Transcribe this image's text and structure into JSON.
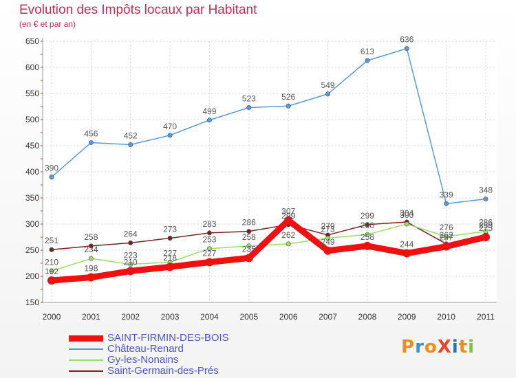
{
  "chart_data": {
    "type": "line",
    "title": "Evolution des Impôts locaux par Habitant",
    "subtitle": "(en € et par an)",
    "x": [
      "2000",
      "2001",
      "2002",
      "2003",
      "2004",
      "2005",
      "2006",
      "2007",
      "2008",
      "2009",
      "2010",
      "2011"
    ],
    "ylim": [
      150,
      650
    ],
    "yticks": [
      150,
      200,
      250,
      300,
      350,
      400,
      450,
      500,
      550,
      600,
      650
    ],
    "grid": true,
    "legend_position": "bottom-left",
    "series": [
      {
        "name": "SAINT-FIRMIN-DES-BOIS",
        "color": "#ee1111",
        "values": [
          192,
          198,
          210,
          218,
          227,
          235,
          307,
          249,
          258,
          244,
          257,
          275
        ]
      },
      {
        "name": "Château-Renard",
        "color": "#5a9ad2",
        "values": [
          390,
          456,
          452,
          470,
          499,
          523,
          526,
          549,
          613,
          636,
          339,
          348
        ]
      },
      {
        "name": "Gy-les-Nonains",
        "color": "#99dd66",
        "values": [
          210,
          234,
          223,
          227,
          253,
          258,
          262,
          273,
          280,
          300,
          276,
          286
        ]
      },
      {
        "name": "Saint-Germain-des-Prés",
        "color": "#772222",
        "values": [
          251,
          258,
          264,
          273,
          283,
          286,
          299,
          279,
          299,
          304,
          262,
          280
        ]
      }
    ]
  },
  "logo": {
    "text": "ProXiti",
    "letter_colors": [
      "#f08c1e",
      "#3a8fd4",
      "#f08c1e",
      "#e8452c",
      "#2a6fc0",
      "#f08c1e",
      "#7cc242"
    ]
  }
}
